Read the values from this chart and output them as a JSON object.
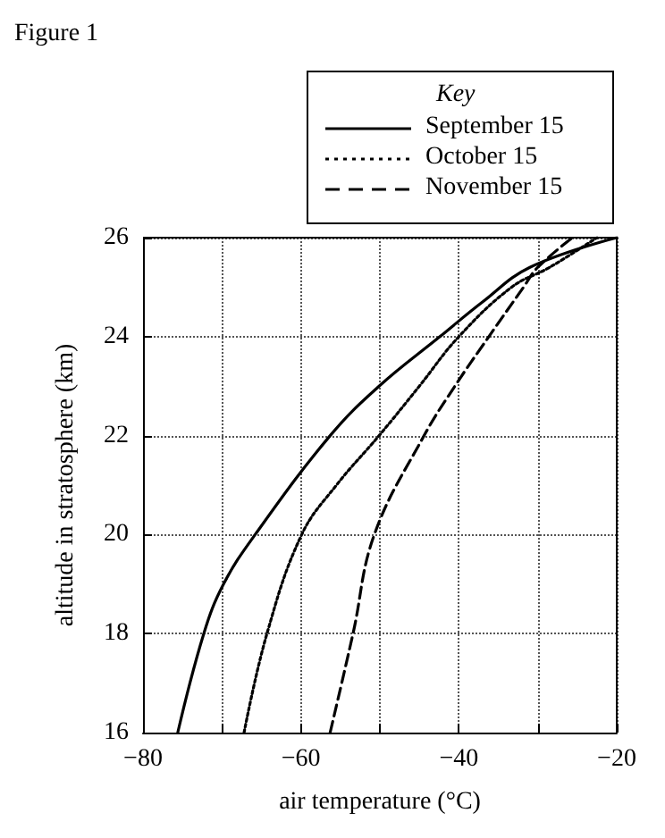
{
  "chart_data": {
    "type": "line",
    "title": "Figure 1",
    "legend_title": "Key",
    "xlabel": "air temperature (°C)",
    "ylabel": "altitude in stratosphere (km)",
    "series": [
      {
        "name": "September 15",
        "color": "#000000",
        "line_style": "solid",
        "x": [
          -75.6,
          -72.3,
          -69.8,
          -65.8,
          -56.3,
          -50.1,
          -42.4,
          -37,
          -31,
          -20
        ],
        "values": [
          16,
          18,
          19,
          20,
          22,
          23,
          24,
          24.7,
          25.4,
          26
        ]
      },
      {
        "name": "October 15",
        "color": "#000000",
        "line_style": "dotted",
        "x": [
          -67.2,
          -64.3,
          -59.9,
          -55.5,
          -50.1,
          -45,
          -40,
          -33.3,
          -28.5,
          -22.5
        ],
        "values": [
          16,
          18,
          20,
          21,
          22,
          23,
          24,
          25,
          25.4,
          26
        ]
      },
      {
        "name": "November 15",
        "color": "#000000",
        "line_style": "dashed",
        "x": [
          -56.3,
          -53.4,
          -50.7,
          -44.4,
          -40.5,
          -36.2,
          -31.8,
          -30,
          -25.6
        ],
        "values": [
          16,
          18,
          20,
          22,
          23,
          24,
          25,
          25.4,
          26
        ]
      }
    ],
    "xlim": [
      -80,
      -20
    ],
    "xticks": [
      {
        "value": -80,
        "label": "−80"
      },
      {
        "value": -70,
        "label": null
      },
      {
        "value": -60,
        "label": "−60"
      },
      {
        "value": -50,
        "label": null
      },
      {
        "value": -40,
        "label": "−40"
      },
      {
        "value": -30,
        "label": null
      },
      {
        "value": -20,
        "label": "−20"
      }
    ],
    "ylim": [
      16,
      26
    ],
    "yticks": [
      16,
      18,
      20,
      22,
      24,
      26
    ],
    "grid": true,
    "legend": "top right",
    "marker": "none"
  }
}
